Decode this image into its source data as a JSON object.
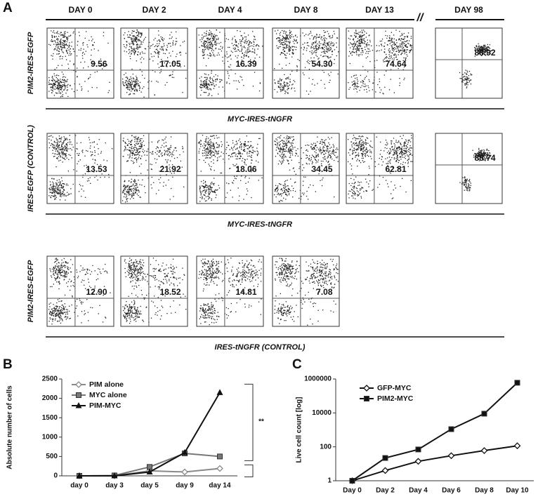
{
  "panel_a": {
    "label": "A",
    "days": [
      "DAY 0",
      "DAY 2",
      "DAY 4",
      "DAY 8",
      "DAY 13",
      "DAY 98"
    ],
    "separator": "//",
    "rows": [
      {
        "label": "PIM2-IRES-EGFP",
        "x_label": "MYC-IRES-tNGFR",
        "percents": [
          "9.56",
          "17.05",
          "16.39",
          "54.30",
          "74.64",
          "88.92"
        ]
      },
      {
        "label": "IRES-EGFP (CONTROL)",
        "x_label": "MYC-IRES-tNGFR",
        "percents": [
          "13.53",
          "21.92",
          "18.06",
          "34.45",
          "62.81",
          "88.74"
        ]
      },
      {
        "label": "PIM2-IRES-EGFP",
        "x_label": "IRES-tNGFR (CONTROL)",
        "percents": [
          "12.90",
          "18.52",
          "14.81",
          "7.08"
        ]
      }
    ]
  },
  "chart_data": [
    {
      "type": "line",
      "panel_label": "B",
      "y_label": "Absolute number of cells",
      "categories": [
        "day 0",
        "day 3",
        "day 5",
        "day 9",
        "day 14"
      ],
      "ylim": [
        0,
        2500
      ],
      "yticks": [
        0,
        500,
        1000,
        1500,
        2000,
        2500
      ],
      "log_scale": false,
      "annotation": "**",
      "series": [
        {
          "name": "PIM alone",
          "color": "#8a8a8a",
          "marker": "diamond",
          "values": [
            0,
            0,
            130,
            100,
            190
          ]
        },
        {
          "name": "MYC alone",
          "color": "#777777",
          "marker": "square",
          "values": [
            0,
            10,
            230,
            580,
            500
          ]
        },
        {
          "name": "PIM-MYC",
          "color": "#111111",
          "marker": "triangle",
          "values": [
            0,
            0,
            100,
            600,
            2150
          ]
        }
      ]
    },
    {
      "type": "line",
      "panel_label": "C",
      "y_label": "Live cell count [log]",
      "categories": [
        "Day 0",
        "Day 2",
        "Day 4",
        "Day 6",
        "Day 8",
        "Day 10"
      ],
      "ylim": [
        1,
        1000000
      ],
      "yticks": [
        1,
        100,
        10000,
        1000000
      ],
      "log_scale": true,
      "series": [
        {
          "name": "GFP-MYC",
          "color": "#111111",
          "marker": "diamond",
          "values": [
            1,
            4,
            14,
            30,
            60,
            115
          ]
        },
        {
          "name": "PIM2-MYC",
          "color": "#111111",
          "marker": "square",
          "values": [
            1,
            22,
            70,
            1100,
            9000,
            600000
          ]
        }
      ]
    }
  ]
}
